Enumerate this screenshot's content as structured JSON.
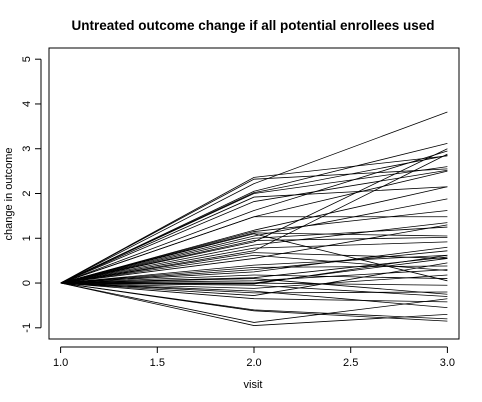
{
  "chart_data": {
    "type": "line",
    "title": "Untreated outcome change if all potential enrollees used",
    "xlabel": "visit",
    "ylabel": "change in outcome",
    "xlim": [
      0.94,
      3.06
    ],
    "ylim": [
      -1.25,
      5.25
    ],
    "xticks": [
      1.0,
      1.5,
      2.0,
      2.5,
      3.0
    ],
    "xtick_labels": [
      "1.0",
      "1.5",
      "2.0",
      "2.5",
      "3.0"
    ],
    "yticks": [
      -1,
      0,
      1,
      2,
      3,
      4,
      5
    ],
    "ytick_labels": [
      "-1",
      "0",
      "1",
      "2",
      "3",
      "4",
      "5"
    ],
    "grid": false,
    "legend": "none",
    "line_color": "#000000",
    "x": [
      1.0,
      2.0,
      3.0
    ],
    "series": [
      {
        "values": [
          0,
          2.36,
          2.84
        ]
      },
      {
        "values": [
          0,
          2.32,
          2.55
        ]
      },
      {
        "values": [
          0,
          2.22,
          3.82
        ]
      },
      {
        "values": [
          0,
          2.05,
          3.12
        ]
      },
      {
        "values": [
          0,
          2.02,
          2.85
        ]
      },
      {
        "values": [
          0,
          2.0,
          2.6
        ]
      },
      {
        "values": [
          0,
          1.92,
          2.15
        ]
      },
      {
        "values": [
          0,
          1.82,
          2.52
        ]
      },
      {
        "values": [
          0,
          1.62,
          2.95
        ]
      },
      {
        "values": [
          0,
          1.48,
          1.48
        ]
      },
      {
        "values": [
          0,
          1.48,
          2.5
        ]
      },
      {
        "values": [
          0,
          1.18,
          2.15
        ]
      },
      {
        "values": [
          0,
          1.15,
          1.62
        ]
      },
      {
        "values": [
          0,
          1.12,
          1.05
        ]
      },
      {
        "values": [
          0,
          1.1,
          0.05
        ]
      },
      {
        "values": [
          0,
          1.05,
          1.88
        ]
      },
      {
        "values": [
          0,
          1.0,
          1.25
        ]
      },
      {
        "values": [
          0,
          0.95,
          1.02
        ]
      },
      {
        "values": [
          0,
          0.92,
          3.0
        ]
      },
      {
        "values": [
          0,
          0.85,
          1.35
        ]
      },
      {
        "values": [
          0,
          0.78,
          0.92
        ]
      },
      {
        "values": [
          0,
          0.72,
          2.88
        ]
      },
      {
        "values": [
          0,
          0.68,
          0.55
        ]
      },
      {
        "values": [
          0,
          0.62,
          0.28
        ]
      },
      {
        "values": [
          0,
          0.55,
          1.3
        ]
      },
      {
        "values": [
          0,
          0.4,
          0.62
        ]
      },
      {
        "values": [
          0,
          0.35,
          0.38
        ]
      },
      {
        "values": [
          0,
          0.3,
          0.72
        ]
      },
      {
        "values": [
          0,
          0.25,
          0.8
        ]
      },
      {
        "values": [
          0,
          0.18,
          0.1
        ]
      },
      {
        "values": [
          0,
          0.12,
          0.58
        ]
      },
      {
        "values": [
          0,
          0.1,
          -0.25
        ]
      },
      {
        "values": [
          0,
          0.05,
          0.3
        ]
      },
      {
        "values": [
          0,
          0.0,
          0.55
        ]
      },
      {
        "values": [
          0,
          0.0,
          -0.05
        ]
      },
      {
        "values": [
          0,
          -0.02,
          0.62
        ]
      },
      {
        "values": [
          0,
          -0.05,
          -0.3
        ]
      },
      {
        "values": [
          0,
          -0.12,
          0.18
        ]
      },
      {
        "values": [
          0,
          -0.18,
          -0.55
        ]
      },
      {
        "values": [
          0,
          -0.22,
          -0.2
        ]
      },
      {
        "values": [
          0,
          -0.28,
          0.45
        ]
      },
      {
        "values": [
          0,
          -0.35,
          -0.42
        ]
      },
      {
        "values": [
          0,
          -0.6,
          -0.8
        ]
      },
      {
        "values": [
          0,
          -0.62,
          -0.85
        ]
      },
      {
        "values": [
          0,
          -0.88,
          -0.35
        ]
      },
      {
        "values": [
          0,
          -0.95,
          -0.7
        ]
      }
    ]
  }
}
